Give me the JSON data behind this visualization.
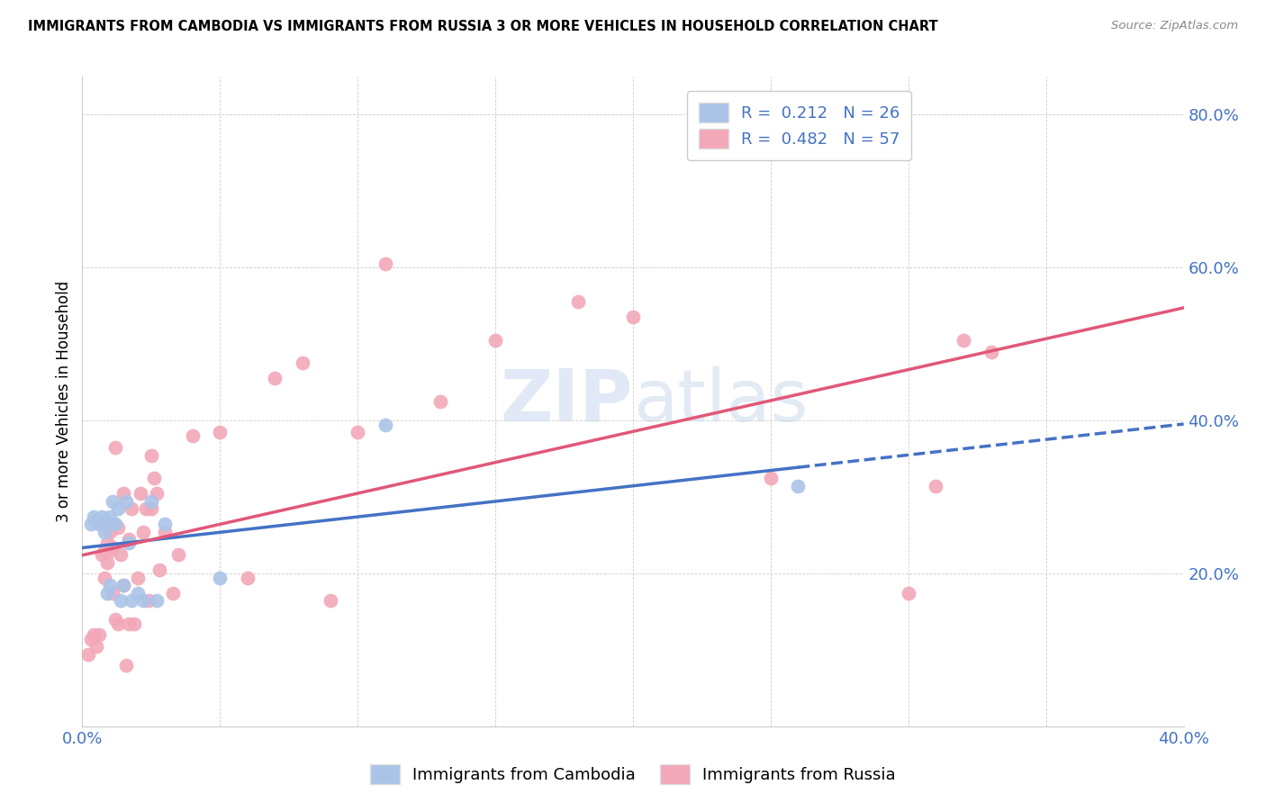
{
  "title": "IMMIGRANTS FROM CAMBODIA VS IMMIGRANTS FROM RUSSIA 3 OR MORE VEHICLES IN HOUSEHOLD CORRELATION CHART",
  "source": "Source: ZipAtlas.com",
  "ylabel": "3 or more Vehicles in Household",
  "xlim": [
    0.0,
    0.4
  ],
  "ylim": [
    0.0,
    0.85
  ],
  "xticks": [
    0.0,
    0.05,
    0.1,
    0.15,
    0.2,
    0.25,
    0.3,
    0.35,
    0.4
  ],
  "yticks": [
    0.0,
    0.2,
    0.4,
    0.6,
    0.8
  ],
  "xtick_labels": [
    "0.0%",
    "",
    "",
    "",
    "",
    "",
    "",
    "",
    "40.0%"
  ],
  "ytick_labels": [
    "",
    "20.0%",
    "40.0%",
    "60.0%",
    "80.0%"
  ],
  "cambodia_color": "#aac4e8",
  "russia_color": "#f2a8b8",
  "cambodia_line_color": "#4472c4",
  "russia_line_color": "#e05878",
  "background_color": "#ffffff",
  "watermark_zip": "ZIP",
  "watermark_atlas": "atlas",
  "cambodia_x": [
    0.003,
    0.004,
    0.005,
    0.006,
    0.007,
    0.008,
    0.008,
    0.009,
    0.01,
    0.01,
    0.011,
    0.012,
    0.013,
    0.014,
    0.015,
    0.016,
    0.017,
    0.018,
    0.02,
    0.022,
    0.025,
    0.027,
    0.03,
    0.05,
    0.11,
    0.26
  ],
  "cambodia_y": [
    0.265,
    0.275,
    0.27,
    0.265,
    0.275,
    0.27,
    0.255,
    0.175,
    0.275,
    0.185,
    0.295,
    0.265,
    0.285,
    0.165,
    0.185,
    0.295,
    0.24,
    0.165,
    0.175,
    0.165,
    0.295,
    0.165,
    0.265,
    0.195,
    0.395,
    0.315
  ],
  "russia_x": [
    0.002,
    0.003,
    0.004,
    0.005,
    0.006,
    0.007,
    0.007,
    0.008,
    0.008,
    0.009,
    0.009,
    0.01,
    0.01,
    0.011,
    0.011,
    0.012,
    0.012,
    0.013,
    0.013,
    0.014,
    0.015,
    0.015,
    0.016,
    0.017,
    0.017,
    0.018,
    0.019,
    0.02,
    0.021,
    0.022,
    0.023,
    0.024,
    0.025,
    0.025,
    0.026,
    0.027,
    0.028,
    0.03,
    0.033,
    0.035,
    0.04,
    0.05,
    0.06,
    0.07,
    0.08,
    0.09,
    0.1,
    0.11,
    0.13,
    0.15,
    0.18,
    0.2,
    0.25,
    0.3,
    0.31,
    0.32,
    0.33
  ],
  "russia_y": [
    0.095,
    0.115,
    0.12,
    0.105,
    0.12,
    0.265,
    0.225,
    0.23,
    0.195,
    0.24,
    0.215,
    0.23,
    0.255,
    0.175,
    0.235,
    0.14,
    0.365,
    0.135,
    0.26,
    0.225,
    0.185,
    0.305,
    0.08,
    0.245,
    0.135,
    0.285,
    0.135,
    0.195,
    0.305,
    0.255,
    0.285,
    0.165,
    0.355,
    0.285,
    0.325,
    0.305,
    0.205,
    0.255,
    0.175,
    0.225,
    0.38,
    0.385,
    0.195,
    0.455,
    0.475,
    0.165,
    0.385,
    0.605,
    0.425,
    0.505,
    0.555,
    0.535,
    0.325,
    0.175,
    0.315,
    0.505,
    0.49
  ],
  "camb_line_x_solid_end": 0.26,
  "camb_line_x_dash_end": 0.4,
  "russia_line_x_start": 0.0,
  "russia_line_x_end": 0.4
}
